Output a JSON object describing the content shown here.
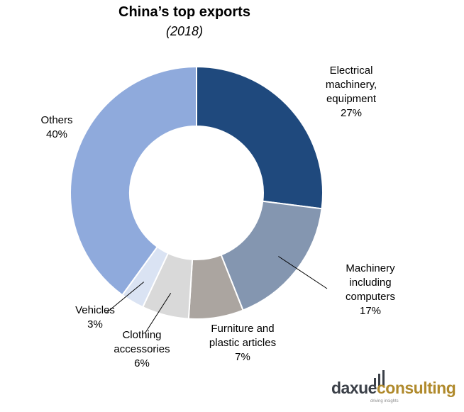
{
  "chart_data": {
    "type": "pie",
    "variant": "donut",
    "title": "China’s top exports",
    "subtitle": "(2018)",
    "slices": [
      {
        "label": [
          "Electrical",
          "machinery,",
          "equipment"
        ],
        "value": 27,
        "value_label": "27%",
        "color": "#1f497d"
      },
      {
        "label": [
          "Machinery",
          "including",
          "computers"
        ],
        "value": 17,
        "value_label": "17%",
        "color": "#8496b0"
      },
      {
        "label": [
          "Furniture and",
          "plastic articles"
        ],
        "value": 7,
        "value_label": "7%",
        "color": "#aba5a0"
      },
      {
        "label": [
          "Clothing",
          "accessories"
        ],
        "value": 6,
        "value_label": "6%",
        "color": "#d9d9d9"
      },
      {
        "label": [
          "Vehicles"
        ],
        "value": 3,
        "value_label": "3%",
        "color": "#dae3f3"
      },
      {
        "label": [
          "Others"
        ],
        "value": 40,
        "value_label": "40%",
        "color": "#8faadc"
      }
    ],
    "start_angle": "12 o'clock",
    "direction": "clockwise",
    "legend": "none"
  },
  "logo": {
    "text_main": "daxue",
    "text_accent": "consulting",
    "tagline": "driving insights"
  }
}
